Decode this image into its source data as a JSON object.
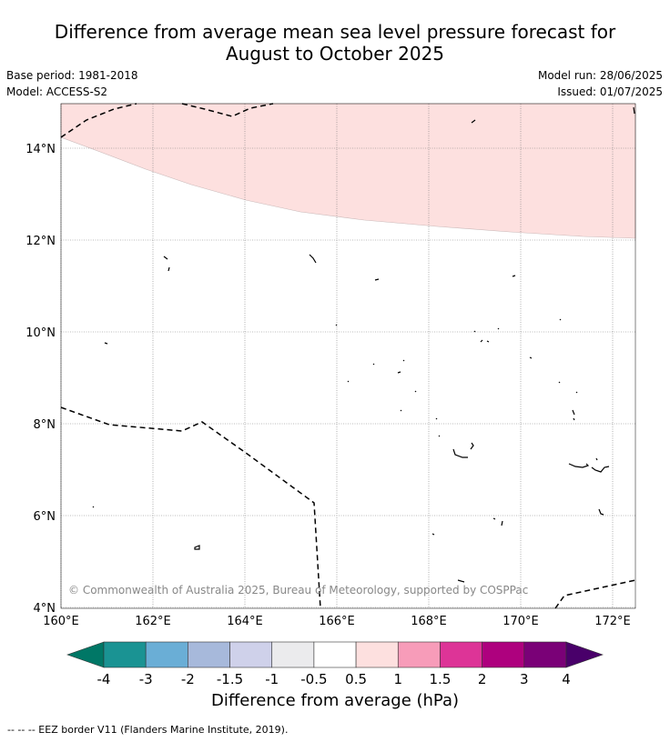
{
  "title_line1": "Difference from average mean sea level pressure forecast for",
  "title_line2": "August to October 2025",
  "base_period": "Base period: 1981-2018",
  "model": "Model: ACCESS-S2",
  "model_run": "Model run: 28/06/2025",
  "issued": "Issued: 01/07/2025",
  "copyright": "© Commonwealth of Australia 2025, Bureau of Meteorology, supported by COSPPac",
  "map": {
    "lon_ticks": [
      "160°E",
      "162°E",
      "164°E",
      "166°E",
      "168°E",
      "170°E",
      "172°E"
    ],
    "lat_ticks": [
      "14°N",
      "12°N",
      "10°N",
      "8°N",
      "6°N",
      "4°N"
    ],
    "anomaly_region": {
      "category": "0.5 to 1 hPa",
      "color": "#fde0df"
    },
    "eez_color": "#000000"
  },
  "legend": {
    "ticks": [
      "-4",
      "-3",
      "-2",
      "-1.5",
      "-1",
      "-0.5",
      "0.5",
      "1",
      "1.5",
      "2",
      "3",
      "4"
    ],
    "colors": [
      "#007766",
      "#1a9393",
      "#6aaed6",
      "#a7b9db",
      "#cfd1ea",
      "#ebebed",
      "#ffffff",
      "#fde0df",
      "#f79cb9",
      "#dd3497",
      "#ae017e",
      "#7a0177",
      "#49006a"
    ],
    "title": "Difference from average (hPa)"
  },
  "footnote": "--  --  -- EEZ border V11 (Flanders Marine Institute, 2019)."
}
